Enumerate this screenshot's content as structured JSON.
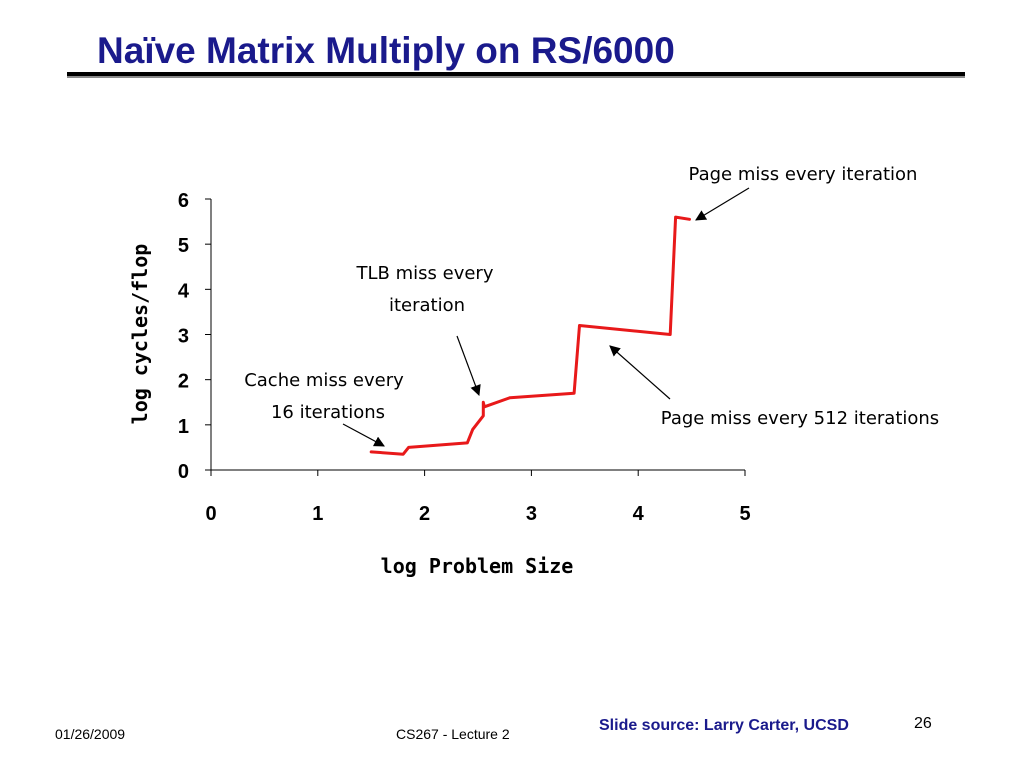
{
  "slide": {
    "title": "Naïve Matrix Multiply on RS/6000",
    "footer_date": "01/26/2009",
    "footer_course": "CS267 - Lecture 2",
    "footer_source": "Slide source: Larry Carter, UCSD",
    "page_number": "26"
  },
  "colors": {
    "title": "#1a1a8c",
    "series": "#e8191a",
    "axis": "#000000"
  },
  "chart_data": {
    "type": "line",
    "title": "",
    "xlabel": "log Problem Size",
    "ylabel": "log cycles/flop",
    "xlim": [
      0,
      5
    ],
    "ylim": [
      0,
      6
    ],
    "x_ticks": [
      "0",
      "1",
      "2",
      "3",
      "4",
      "5"
    ],
    "y_ticks": [
      "0",
      "1",
      "2",
      "3",
      "4",
      "5",
      "6"
    ],
    "grid": false,
    "legend": "none",
    "series": [
      {
        "x": [
          1.5,
          1.8,
          1.85,
          2.4,
          2.45,
          2.55,
          2.55,
          2.56,
          2.8,
          3.4,
          3.45,
          4.3,
          4.35,
          4.48
        ],
        "y": [
          0.4,
          0.35,
          0.5,
          0.6,
          0.9,
          1.2,
          1.5,
          1.4,
          1.6,
          1.7,
          3.2,
          3.0,
          5.6,
          5.55
        ]
      }
    ],
    "annotations": [
      {
        "id": "cache",
        "lines": [
          "Cache miss every",
          "16 iterations"
        ]
      },
      {
        "id": "tlb",
        "lines": [
          "TLB miss every",
          "iteration"
        ]
      },
      {
        "id": "page512",
        "lines": [
          "Page miss every 512 iterations"
        ]
      },
      {
        "id": "pageevery",
        "lines": [
          "Page miss every iteration"
        ]
      }
    ]
  }
}
